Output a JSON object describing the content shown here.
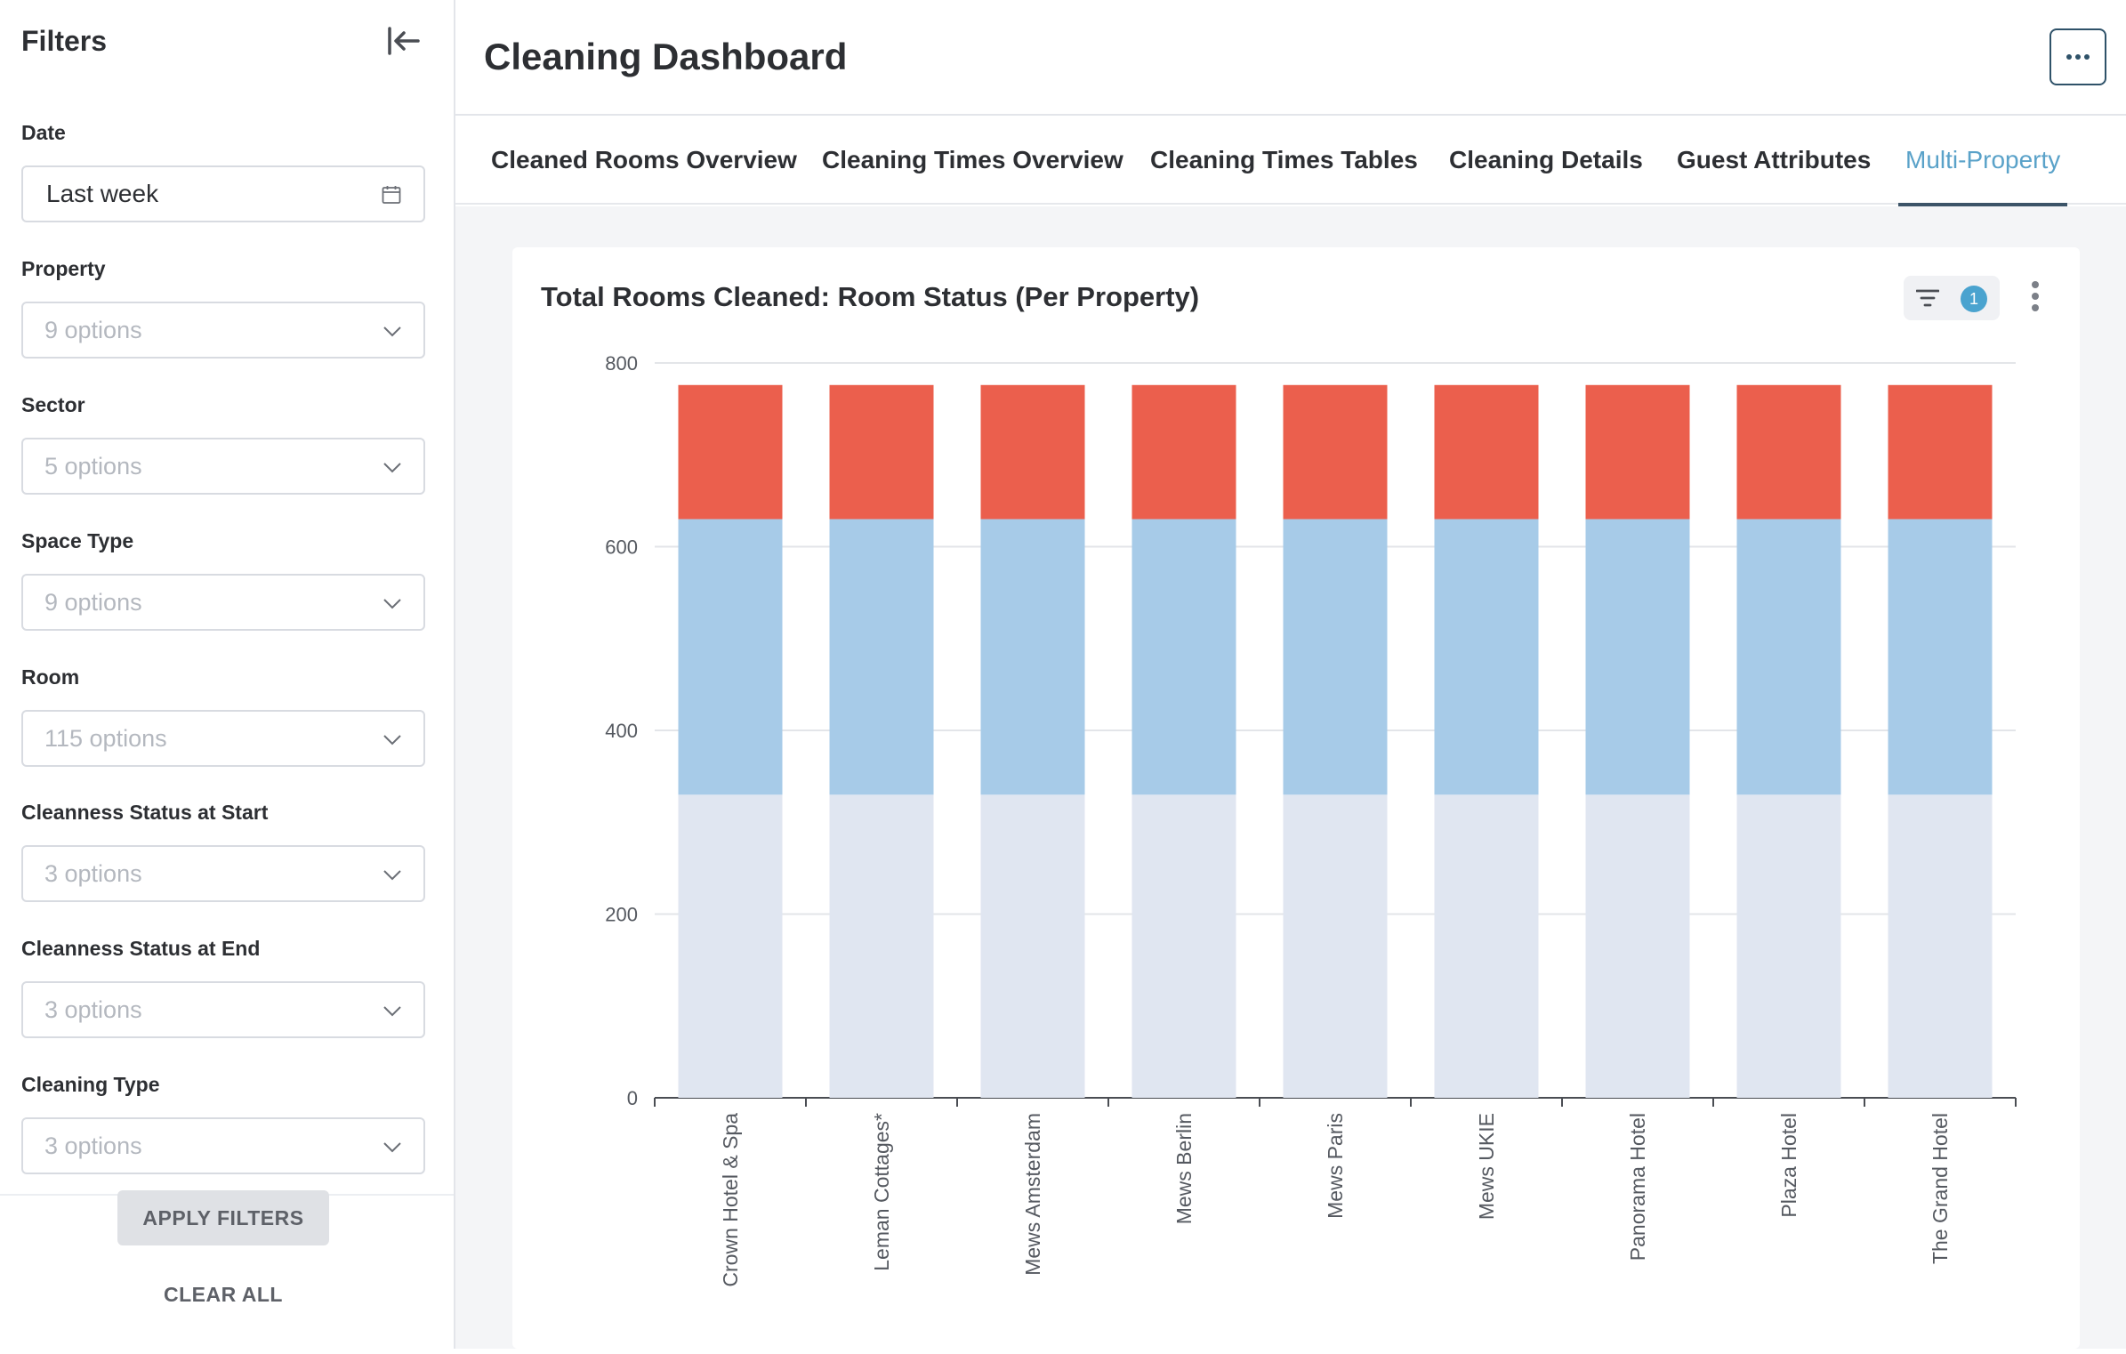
{
  "sidebar": {
    "title": "Filters",
    "filters": [
      {
        "label": "Date",
        "value": "Last week"
      },
      {
        "label": "Property",
        "placeholder": "9 options"
      },
      {
        "label": "Sector",
        "placeholder": "5 options"
      },
      {
        "label": "Space Type",
        "placeholder": "9 options"
      },
      {
        "label": "Room",
        "placeholder": "115 options"
      },
      {
        "label": "Cleanness Status at Start",
        "placeholder": "3 options"
      },
      {
        "label": "Cleanness Status at End",
        "placeholder": "3 options"
      },
      {
        "label": "Cleaning Type",
        "placeholder": "3 options"
      }
    ],
    "apply_label": "APPLY FILTERS",
    "clear_label": "CLEAR ALL"
  },
  "header": {
    "title": "Cleaning Dashboard"
  },
  "tabs": [
    {
      "label": "Cleaned Rooms Overview",
      "active": false
    },
    {
      "label": "Cleaning Times Overview",
      "active": false
    },
    {
      "label": "Cleaning Times Tables",
      "active": false
    },
    {
      "label": "Cleaning Details",
      "active": false
    },
    {
      "label": "Guest Attributes",
      "active": false
    },
    {
      "label": "Multi-Property",
      "active": true
    }
  ],
  "card": {
    "title": "Total Rooms Cleaned: Room Status (Per Property)",
    "filter_count": "1"
  },
  "colors": {
    "accent": "#5aa2c9",
    "bar_bottom": "#e0e6f1",
    "bar_middle": "#a7cbe8",
    "bar_top": "#eb5f4d",
    "badge": "#4aa3cf"
  },
  "chart_data": {
    "type": "bar",
    "stacked": true,
    "categories": [
      "Crown Hotel & Spa",
      "Leman Cottages*",
      "Mews Amsterdam",
      "Mews Berlin",
      "Mews Paris",
      "Mews UKIE",
      "Panorama Hotel",
      "Plaza Hotel",
      "The Grand Hotel"
    ],
    "series": [
      {
        "color": "#e0e6f1",
        "values": [
          330,
          330,
          330,
          330,
          330,
          330,
          330,
          330,
          330
        ]
      },
      {
        "color": "#a7cbe8",
        "values": [
          300,
          300,
          300,
          300,
          300,
          300,
          300,
          300,
          300
        ]
      },
      {
        "color": "#eb5f4d",
        "values": [
          146,
          146,
          146,
          146,
          146,
          146,
          146,
          146,
          146
        ]
      }
    ],
    "ylim": [
      0,
      800
    ],
    "yticks": [
      0,
      200,
      400,
      600,
      800
    ],
    "grid": true
  }
}
